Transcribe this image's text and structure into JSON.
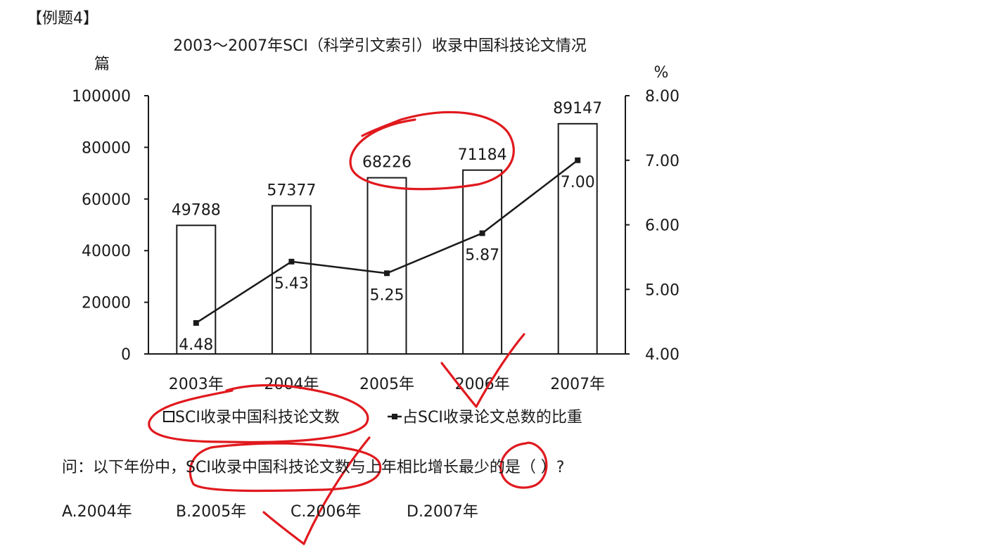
{
  "header_tag": "【例题4】",
  "question": {
    "text": "问：以下年份中，SCI收录中国科技论文数与上年相比增长最少的是（  ）?",
    "options": [
      "A.2004年",
      "B.2005年",
      "C.2006年",
      "D.2007年"
    ]
  },
  "chart_data": {
    "type": "bar",
    "title": "2003～2007年SCI（科学引文索引）收录中国科技论文情况",
    "categories": [
      "2003年",
      "2004年",
      "2005年",
      "2006年",
      "2007年"
    ],
    "ylabel_left": "篇",
    "ylabel_right": "%",
    "ylim_left": [
      0,
      100000
    ],
    "ylim_right": [
      4.0,
      8.0
    ],
    "yticks_left": [
      "0",
      "20000",
      "40000",
      "60000",
      "80000",
      "100000"
    ],
    "yticks_right": [
      "4.00",
      "5.00",
      "6.00",
      "7.00",
      "8.00"
    ],
    "grid": false,
    "legend_position": "bottom",
    "series": [
      {
        "name": "SCI收录中国科技论文数",
        "type": "bar",
        "axis": "left",
        "values": [
          49788,
          57377,
          68226,
          71184,
          89147
        ],
        "labels": [
          "49788",
          "57377",
          "68226",
          "71184",
          "89147"
        ]
      },
      {
        "name": "占SCI收录论文总数的比重",
        "type": "line",
        "axis": "right",
        "values": [
          4.48,
          5.43,
          5.25,
          5.87,
          7.0
        ],
        "labels": [
          "4.48",
          "5.43",
          "5.25",
          "5.87",
          "7.00"
        ]
      }
    ]
  },
  "colors": {
    "ink": "#1a1a1a",
    "annotation": "#e0191e",
    "bar_fill": "#ffffff"
  }
}
